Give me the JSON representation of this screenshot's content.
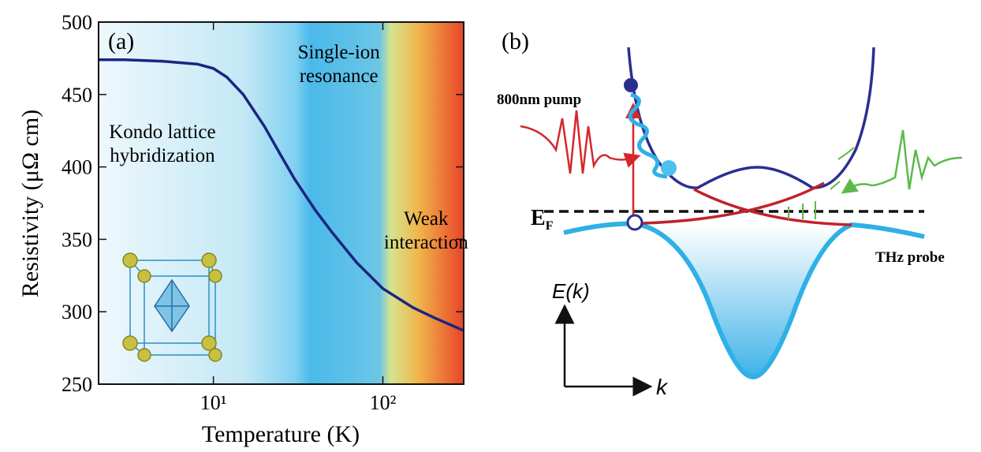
{
  "chart_data": {
    "type": "line",
    "panel_label": "(a)",
    "x_label": "Temperature (K)",
    "y_label": "Resistivity (μΩ cm)",
    "x_scale": "log",
    "x": [
      2.1,
      3,
      5,
      8,
      10,
      12,
      15,
      20,
      25,
      30,
      40,
      50,
      70,
      100,
      150,
      200,
      300
    ],
    "series": [
      {
        "color": "#1b2580",
        "values": [
          474,
          474,
          473,
          471,
          468,
          462,
          450,
          428,
          408,
          392,
          370,
          355,
          334,
          316,
          303,
          296,
          287
        ]
      }
    ],
    "xlim": [
      2.1,
      300
    ],
    "xticks": [
      {
        "value": 10,
        "label": "10¹"
      },
      {
        "value": 100,
        "label": "10²"
      }
    ],
    "ylim": [
      250,
      500
    ],
    "yticks": [
      250,
      300,
      350,
      400,
      450,
      500
    ],
    "annotations": [
      {
        "lines": [
          "Kondo lattice",
          "hybridization"
        ],
        "x": 5,
        "y": 420
      },
      {
        "lines": [
          "Single-ion",
          "resonance"
        ],
        "x": 55,
        "y": 475
      },
      {
        "lines": [
          "Weak",
          "interaction"
        ],
        "x": 180,
        "y": 360
      }
    ]
  },
  "diagram": {
    "panel_label": "(b)",
    "pump_label": "800nm pump",
    "fermi_label": "E",
    "fermi_subscript": "F",
    "probe_label": "THz probe",
    "energy_axis_label": "E(k)",
    "momentum_axis_label": "k"
  }
}
